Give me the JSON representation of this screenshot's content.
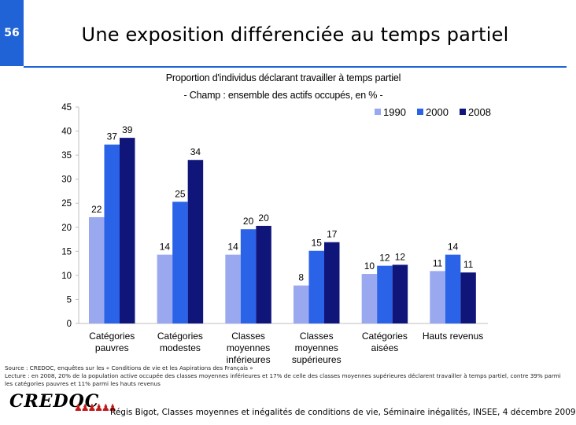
{
  "slide_number": "56",
  "title": "Une exposition différenciée au temps partiel",
  "subtitle_line1": "Proportion d'individus déclarant travailler à temps partiel",
  "subtitle_line2": "- Champ : ensemble des actifs occupés, en % -",
  "chart_data": {
    "type": "bar",
    "title": "Proportion d'individus déclarant travailler à temps partiel",
    "subtitle": "- Champ : ensemble des actifs occupés, en % -",
    "categories": [
      [
        "Catégories",
        "pauvres"
      ],
      [
        "Catégories",
        "modestes"
      ],
      [
        "Classes",
        "moyennes",
        "inférieures"
      ],
      [
        "Classes",
        "moyennes",
        "supérieures"
      ],
      [
        "Catégories",
        "aisées"
      ],
      [
        "Hauts revenus"
      ]
    ],
    "series": [
      {
        "name": "1990",
        "color": "#9aa8f0",
        "values": [
          22,
          14,
          14,
          8,
          10,
          11
        ]
      },
      {
        "name": "2000",
        "color": "#2a62e8",
        "values": [
          37,
          25,
          20,
          15,
          12,
          14
        ]
      },
      {
        "name": "2008",
        "color": "#10157a",
        "values": [
          39,
          34,
          20,
          17,
          12,
          11
        ]
      }
    ],
    "bar_heights": [
      [
        22.1,
        14.3,
        14.3,
        7.9,
        10.3,
        10.9
      ],
      [
        37.2,
        25.3,
        19.6,
        15.1,
        12.0,
        14.3
      ],
      [
        38.6,
        34.0,
        20.3,
        16.9,
        12.2,
        10.6
      ]
    ],
    "yticks": [
      0,
      5,
      10,
      15,
      20,
      25,
      30,
      35,
      40,
      45
    ],
    "ylim": [
      0,
      45
    ],
    "xlabel": "",
    "ylabel": "",
    "legend": "top-right",
    "grid": false
  },
  "source_lines": [
    "Source : CREDOC, enquêtes sur les « Conditions de vie et les Aspirations des Français »",
    "Lecture : en 2008, 20% de la population active occupée des classes moyennes inférieures et 17% de celle des classes moyennes supérieures déclarent travailler à temps partiel, contre 39% parmi",
    "les catégories pauvres et 11% parmi les hauts revenus"
  ],
  "logo_text": "CREDOC",
  "footer": "Régis Bigot, Classes moyennes et inégalités de conditions de vie, Séminaire inégalités, INSEE, 4 décembre 2009",
  "colors": {
    "accent": "#1f63d6"
  }
}
